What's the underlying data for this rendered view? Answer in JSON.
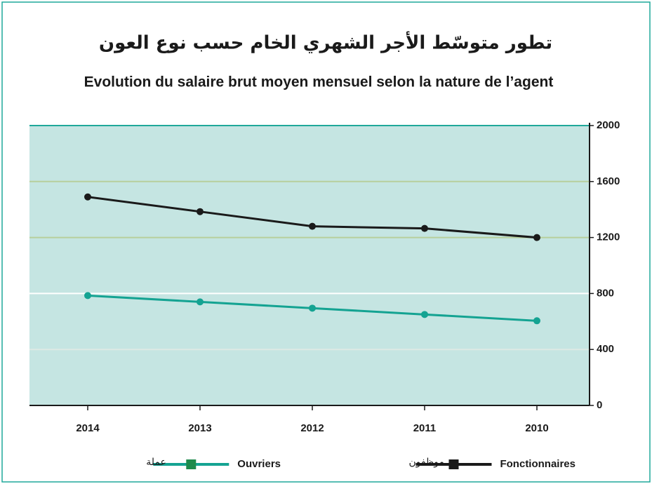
{
  "chart_data": {
    "type": "line",
    "title": "تطور متوسّط الأجر الشهري الخام حسب نوع العون",
    "subtitle": "Evolution du salaire brut moyen mensuel selon la nature de l’agent",
    "categories": [
      "2014",
      "2013",
      "2012",
      "2011",
      "2010"
    ],
    "series": [
      {
        "name": "Fonctionnaires",
        "name_ar": "موظفون",
        "color": "#1a1a1a",
        "values": [
          1490,
          1385,
          1280,
          1265,
          1200
        ]
      },
      {
        "name": "Ouvriers",
        "name_ar": "عملة",
        "color": "#14a392",
        "values": [
          785,
          740,
          695,
          650,
          605
        ]
      }
    ],
    "ylim": [
      0,
      2000
    ],
    "yticks": [
      0,
      400,
      800,
      1200,
      1600,
      2000
    ],
    "y_axis_side": "right",
    "grid": true
  }
}
